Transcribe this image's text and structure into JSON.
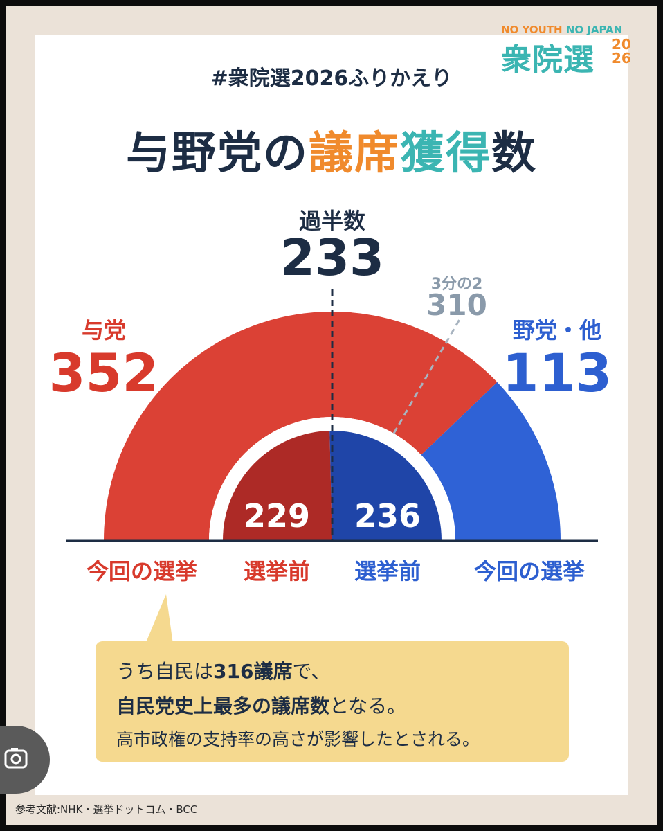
{
  "header": {
    "hashtag": "#衆院選2026ふりかえり",
    "title_part1": "与野党の",
    "title_part2": "議席",
    "title_part3": "獲得",
    "title_part4": "数"
  },
  "logo": {
    "line1_a": "NO YOUTH ",
    "line1_b": "NO JAPAN",
    "main": "衆院選",
    "year_top": "20",
    "year_bottom": "26"
  },
  "labels": {
    "majority_label": "過半数",
    "majority_value": "233",
    "two_thirds_label": "3分の2",
    "two_thirds_value": "310",
    "ruling_label": "与党",
    "ruling_value": "352",
    "opposition_label": "野党・他",
    "opposition_value": "113",
    "inner_ruling_value": "229",
    "inner_opposition_value": "236",
    "bottom_current_left": "今回の選挙",
    "bottom_before_left": "選挙前",
    "bottom_before_right": "選挙前",
    "bottom_current_right": "今回の選挙"
  },
  "note": {
    "line1_a": "うち自民は",
    "line1_b": "316議席",
    "line1_c": "で、",
    "line2_a": "自民党史上最多の議席数",
    "line2_b": "となる。",
    "line3": "高市政権の支持率の高さが影響したとされる。"
  },
  "source": "参考文献:NHK・選挙ドットコム・BCC",
  "colors": {
    "ruling_current": "#db4135",
    "ruling_before": "#ad2a26",
    "opposition_current": "#2f62d6",
    "opposition_before": "#1f45a8",
    "navy": "#1d2d44",
    "note_bg": "#f5d98f"
  },
  "chart_data": {
    "type": "semicircle-parliament",
    "total_seats": 465,
    "majority": 233,
    "two_thirds": 310,
    "series": [
      {
        "name": "今回の選挙",
        "values": {
          "与党": 352,
          "野党・他": 113
        }
      },
      {
        "name": "選挙前",
        "values": {
          "与党": 229,
          "野党・他": 236
        }
      }
    ]
  }
}
